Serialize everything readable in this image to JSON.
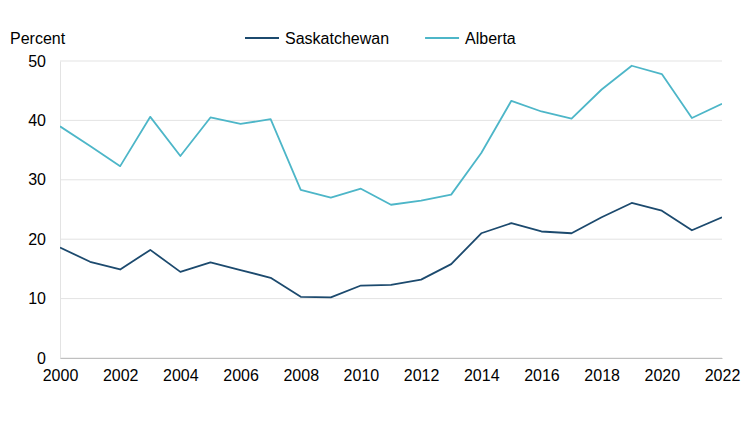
{
  "chart_data": {
    "type": "line",
    "ylabel": "Percent",
    "x": [
      2000,
      2001,
      2002,
      2003,
      2004,
      2005,
      2006,
      2007,
      2008,
      2009,
      2010,
      2011,
      2012,
      2013,
      2014,
      2015,
      2016,
      2017,
      2018,
      2019,
      2020,
      2021,
      2022
    ],
    "series": [
      {
        "name": "Saskatchewan",
        "color": "#1c4a6e",
        "values": [
          18.6,
          16.2,
          14.9,
          18.2,
          14.5,
          16.1,
          14.8,
          13.5,
          10.3,
          10.2,
          12.2,
          12.3,
          13.2,
          15.8,
          21.0,
          22.7,
          21.3,
          21.0,
          23.7,
          26.1,
          24.8,
          21.5,
          23.7
        ]
      },
      {
        "name": "Alberta",
        "color": "#4db6c8",
        "values": [
          39.0,
          35.7,
          32.3,
          40.6,
          34.0,
          40.5,
          39.4,
          40.2,
          28.3,
          27.0,
          28.5,
          25.8,
          26.5,
          27.5,
          34.5,
          43.3,
          41.5,
          40.3,
          45.2,
          49.2,
          47.8,
          40.4,
          42.8
        ]
      }
    ],
    "xlim": [
      2000,
      2022
    ],
    "xticks": [
      2000,
      2002,
      2004,
      2006,
      2008,
      2010,
      2012,
      2014,
      2016,
      2018,
      2020,
      2022
    ],
    "ylim": [
      0,
      50
    ],
    "yticks": [
      0,
      10,
      20,
      30,
      40,
      50
    ],
    "grid": true,
    "legend": "top"
  }
}
